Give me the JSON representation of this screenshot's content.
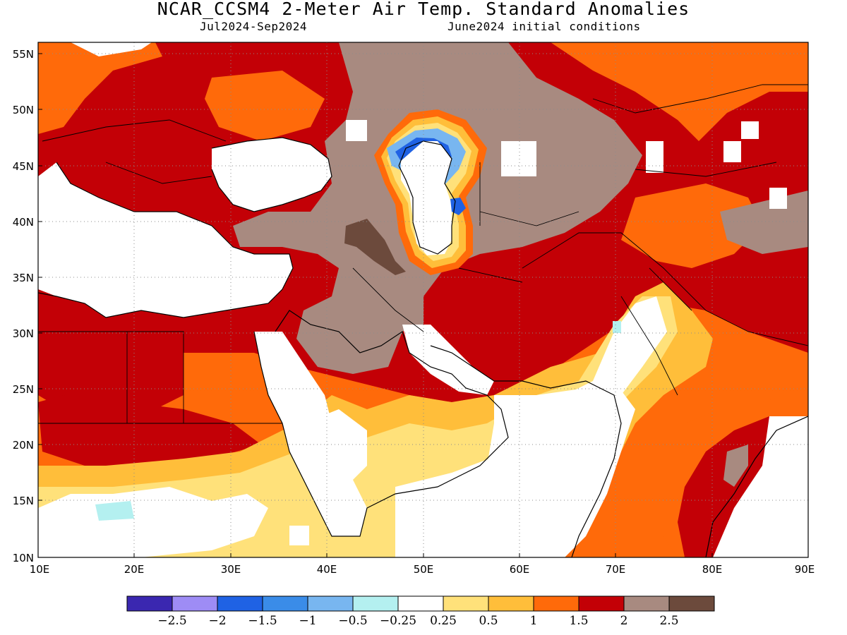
{
  "header": {
    "title": "NCAR_CCSM4 2-Meter Air Temp. Standard Anomalies",
    "period": "Jul2024-Sep2024",
    "init": "June2024 initial conditions"
  },
  "map": {
    "lat_ticks": [
      "10N",
      "15N",
      "20N",
      "25N",
      "30N",
      "35N",
      "40N",
      "45N",
      "50N",
      "55N"
    ],
    "lon_ticks": [
      "10E",
      "20E",
      "30E",
      "40E",
      "50E",
      "60E",
      "70E",
      "80E",
      "90E"
    ],
    "lat_range": [
      10,
      56
    ],
    "lon_range": [
      10,
      90
    ]
  },
  "colorbar": {
    "colors": [
      "#3a27b0",
      "#9e8cf5",
      "#1f62e4",
      "#3a8ce8",
      "#78b6f0",
      "#b4f0f0",
      "#ffffff",
      "#ffe17a",
      "#ffbe3a",
      "#ff6a0a",
      "#c30006",
      "#a88a80",
      "#6c4a3c"
    ],
    "labels": [
      "-2.5",
      "-2",
      "-1.5",
      "-1",
      "-0.5",
      "-0.25",
      "0.25",
      "0.5",
      "1",
      "1.5",
      "2",
      "2.5"
    ]
  }
}
